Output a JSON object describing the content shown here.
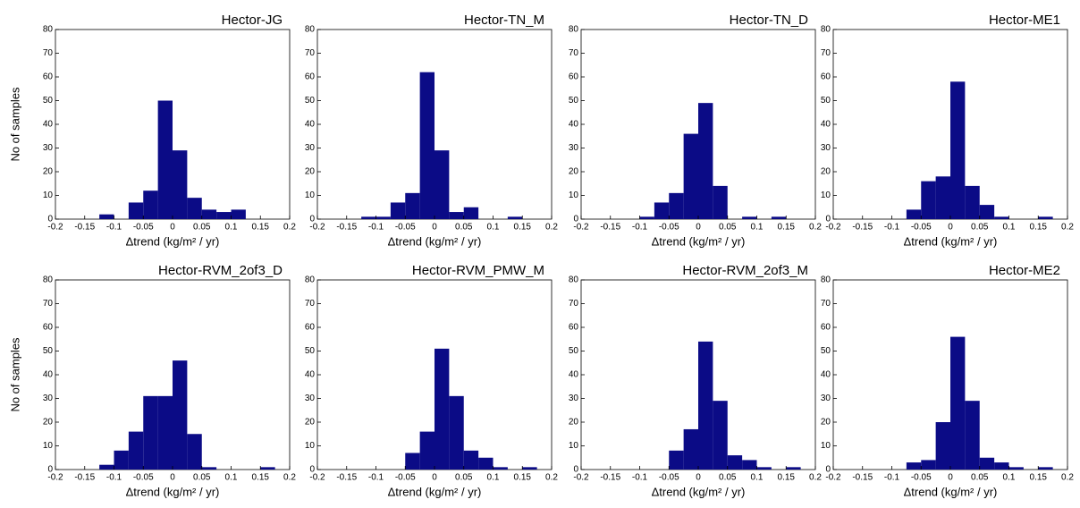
{
  "chart_data": [
    {
      "type": "histogram",
      "title": "Hector-JG",
      "xlabel": "Δtrend (kg/m² / yr)",
      "ylabel": "No of samples",
      "color": "#0b0b86",
      "bins": [
        -0.15,
        -0.125,
        -0.1,
        -0.075,
        -0.05,
        -0.025,
        0,
        0.025,
        0.05,
        0.075,
        0.1,
        0.125,
        0.15,
        0.175,
        0.2
      ],
      "values": [
        0,
        2,
        0,
        7,
        12,
        50,
        29,
        9,
        4,
        3,
        4,
        0,
        0,
        0
      ],
      "xlim": [
        -0.2,
        0.2
      ],
      "xticks": [
        -0.2,
        -0.15,
        -0.1,
        -0.05,
        0,
        0.05,
        0.1,
        0.15,
        0.2
      ],
      "ylim": [
        0,
        80
      ],
      "yticks": [
        0,
        10,
        20,
        30,
        40,
        50,
        60,
        70,
        80
      ]
    },
    {
      "type": "histogram",
      "title": "Hector-TN_M",
      "xlabel": "Δtrend (kg/m² / yr)",
      "color": "#0b0b86",
      "bins": [
        -0.15,
        -0.125,
        -0.1,
        -0.075,
        -0.05,
        -0.025,
        0,
        0.025,
        0.05,
        0.075,
        0.1,
        0.125,
        0.15,
        0.175,
        0.2
      ],
      "values": [
        0,
        1,
        1,
        7,
        11,
        62,
        29,
        3,
        5,
        0,
        0,
        1,
        0,
        0
      ],
      "xlim": [
        -0.2,
        0.2
      ],
      "xticks": [
        -0.2,
        -0.15,
        -0.1,
        -0.05,
        0,
        0.05,
        0.1,
        0.15,
        0.2
      ],
      "ylim": [
        0,
        80
      ],
      "yticks": [
        0,
        10,
        20,
        30,
        40,
        50,
        60,
        70,
        80
      ]
    },
    {
      "type": "histogram",
      "title": "Hector-TN_D",
      "xlabel": "Δtrend (kg/m² / yr)",
      "color": "#0b0b86",
      "bins": [
        -0.15,
        -0.125,
        -0.1,
        -0.075,
        -0.05,
        -0.025,
        0,
        0.025,
        0.05,
        0.075,
        0.1,
        0.125,
        0.15,
        0.175,
        0.2
      ],
      "values": [
        0,
        0,
        1,
        7,
        11,
        36,
        49,
        14,
        0,
        1,
        0,
        1,
        0,
        0
      ],
      "xlim": [
        -0.2,
        0.2
      ],
      "xticks": [
        -0.2,
        -0.15,
        -0.1,
        -0.05,
        0,
        0.05,
        0.1,
        0.15,
        0.2
      ],
      "ylim": [
        0,
        80
      ],
      "yticks": [
        0,
        10,
        20,
        30,
        40,
        50,
        60,
        70,
        80
      ]
    },
    {
      "type": "histogram",
      "title": "Hector-ME1",
      "xlabel": "Δtrend (kg/m² / yr)",
      "color": "#0b0b86",
      "bins": [
        -0.15,
        -0.125,
        -0.1,
        -0.075,
        -0.05,
        -0.025,
        0,
        0.025,
        0.05,
        0.075,
        0.1,
        0.125,
        0.15,
        0.175,
        0.2
      ],
      "values": [
        0,
        0,
        0,
        4,
        16,
        18,
        58,
        14,
        6,
        1,
        0,
        0,
        1,
        0
      ],
      "xlim": [
        -0.2,
        0.2
      ],
      "xticks": [
        -0.2,
        -0.15,
        -0.1,
        -0.05,
        0,
        0.05,
        0.1,
        0.15,
        0.2
      ],
      "ylim": [
        0,
        80
      ],
      "yticks": [
        0,
        10,
        20,
        30,
        40,
        50,
        60,
        70,
        80
      ]
    },
    {
      "type": "histogram",
      "title": "Hector-RVM_2of3_D",
      "xlabel": "Δtrend (kg/m² / yr)",
      "ylabel": "No of samples",
      "color": "#0b0b86",
      "bins": [
        -0.15,
        -0.125,
        -0.1,
        -0.075,
        -0.05,
        -0.025,
        0,
        0.025,
        0.05,
        0.075,
        0.1,
        0.125,
        0.15,
        0.175,
        0.2
      ],
      "values": [
        0,
        2,
        8,
        16,
        31,
        31,
        46,
        15,
        1,
        0,
        0,
        0,
        1,
        0
      ],
      "xlim": [
        -0.2,
        0.2
      ],
      "xticks": [
        -0.2,
        -0.15,
        -0.1,
        -0.05,
        0,
        0.05,
        0.1,
        0.15,
        0.2
      ],
      "ylim": [
        0,
        80
      ],
      "yticks": [
        0,
        10,
        20,
        30,
        40,
        50,
        60,
        70,
        80
      ]
    },
    {
      "type": "histogram",
      "title": "Hector-RVM_PMW_M",
      "xlabel": "Δtrend (kg/m² / yr)",
      "color": "#0b0b86",
      "bins": [
        -0.15,
        -0.125,
        -0.1,
        -0.075,
        -0.05,
        -0.025,
        0,
        0.025,
        0.05,
        0.075,
        0.1,
        0.125,
        0.15,
        0.175,
        0.2
      ],
      "values": [
        0,
        0,
        0,
        0,
        7,
        16,
        51,
        31,
        8,
        5,
        1,
        0,
        1,
        0
      ],
      "xlim": [
        -0.2,
        0.2
      ],
      "xticks": [
        -0.2,
        -0.15,
        -0.1,
        -0.05,
        0,
        0.05,
        0.1,
        0.15,
        0.2
      ],
      "ylim": [
        0,
        80
      ],
      "yticks": [
        0,
        10,
        20,
        30,
        40,
        50,
        60,
        70,
        80
      ]
    },
    {
      "type": "histogram",
      "title": "Hector-RVM_2of3_M",
      "xlabel": "Δtrend (kg/m² / yr)",
      "color": "#0b0b86",
      "bins": [
        -0.15,
        -0.125,
        -0.1,
        -0.075,
        -0.05,
        -0.025,
        0,
        0.025,
        0.05,
        0.075,
        0.1,
        0.125,
        0.15,
        0.175,
        0.2
      ],
      "values": [
        0,
        0,
        0,
        0,
        8,
        17,
        54,
        29,
        6,
        4,
        1,
        0,
        1,
        0
      ],
      "xlim": [
        -0.2,
        0.2
      ],
      "xticks": [
        -0.2,
        -0.15,
        -0.1,
        -0.05,
        0,
        0.05,
        0.1,
        0.15,
        0.2
      ],
      "ylim": [
        0,
        80
      ],
      "yticks": [
        0,
        10,
        20,
        30,
        40,
        50,
        60,
        70,
        80
      ]
    },
    {
      "type": "histogram",
      "title": "Hector-ME2",
      "xlabel": "Δtrend (kg/m² / yr)",
      "color": "#0b0b86",
      "bins": [
        -0.15,
        -0.125,
        -0.1,
        -0.075,
        -0.05,
        -0.025,
        0,
        0.025,
        0.05,
        0.075,
        0.1,
        0.125,
        0.15,
        0.175,
        0.2
      ],
      "values": [
        0,
        0,
        0,
        3,
        4,
        20,
        56,
        29,
        5,
        3,
        1,
        0,
        1,
        0
      ],
      "xlim": [
        -0.2,
        0.2
      ],
      "xticks": [
        -0.2,
        -0.15,
        -0.1,
        -0.05,
        0,
        0.05,
        0.1,
        0.15,
        0.2
      ],
      "ylim": [
        0,
        80
      ],
      "yticks": [
        0,
        10,
        20,
        30,
        40,
        50,
        60,
        70,
        80
      ]
    }
  ]
}
